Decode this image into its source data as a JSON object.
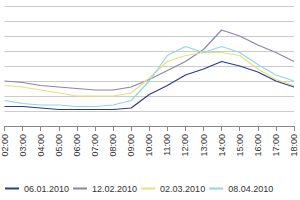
{
  "chart_data": {
    "type": "line",
    "categories": [
      "02:00",
      "03:00",
      "04:00",
      "05:00",
      "06:00",
      "07:00",
      "08:00",
      "09:00",
      "10:00",
      "11:00",
      "12:00",
      "13:00",
      "14:00",
      "15:00",
      "16:00",
      "17:00",
      "18:00"
    ],
    "series": [
      {
        "name": "06.01.2010",
        "color": "#2e3a8c",
        "values": [
          1.3,
          1.3,
          1.2,
          1.1,
          1.1,
          1.1,
          1.1,
          1.2,
          2.1,
          2.7,
          3.4,
          3.8,
          4.3,
          4.0,
          3.6,
          3.0,
          2.6
        ]
      },
      {
        "name": "12.02.2010",
        "color": "#8a84a8",
        "values": [
          3.0,
          2.9,
          2.7,
          2.6,
          2.5,
          2.4,
          2.4,
          2.6,
          3.1,
          3.7,
          4.3,
          5.1,
          6.4,
          6.0,
          5.4,
          4.9,
          4.3
        ]
      },
      {
        "name": "02.03.2010",
        "color": "#e8df7a",
        "values": [
          2.7,
          2.6,
          2.4,
          2.2,
          2.0,
          2.0,
          2.0,
          2.2,
          3.2,
          4.3,
          4.7,
          4.9,
          4.9,
          4.7,
          3.8,
          3.1,
          2.7
        ]
      },
      {
        "name": "08.04.2010",
        "color": "#8fd6e6",
        "values": [
          1.7,
          1.5,
          1.4,
          1.4,
          1.3,
          1.3,
          1.4,
          1.7,
          3.0,
          4.7,
          5.3,
          4.9,
          5.3,
          4.9,
          4.1,
          3.4,
          3.0
        ]
      }
    ],
    "ylim": [
      0,
      8
    ],
    "yticks": [
      0,
      1,
      2,
      3,
      4,
      5,
      6,
      7,
      8
    ],
    "grid": true,
    "legend": "bottom",
    "tick_labels": "x"
  }
}
